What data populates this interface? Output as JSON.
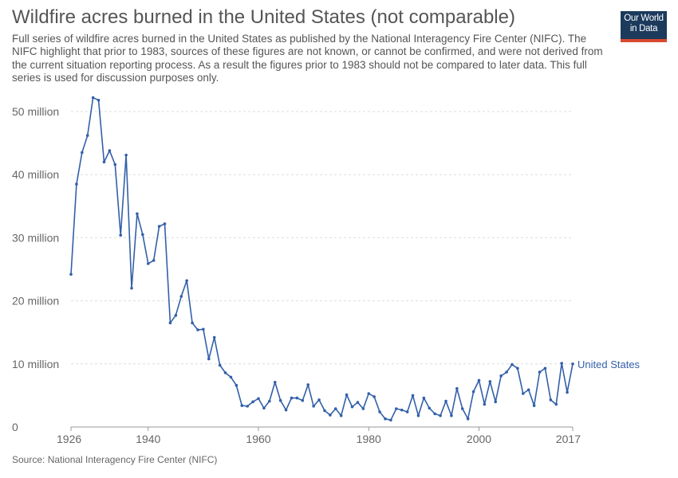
{
  "title": "Wildfire acres burned in the United States (not comparable)",
  "subtitle": "Full series of wildfire acres burned in the United States as published by the National Interagency Fire Center (NIFC). The NIFC highlight that prior to 1983, sources of these figures are not known, or cannot be confirmed, and were not derived from the current situation reporting process. As a result the figures prior to 1983 should not be compared to later data. This full series is used for discussion purposes only.",
  "logo": {
    "line1": "Our World",
    "line2": "in Data",
    "bg": "#1b3a5c",
    "accent": "#d9492f"
  },
  "source": "Source: National Interagency Fire Center (NIFC)",
  "chart_data": {
    "type": "line",
    "title": "Wildfire acres burned in the United States (not comparable)",
    "xlabel": "",
    "ylabel": "",
    "xlim": [
      1926,
      2017
    ],
    "ylim": [
      0,
      50000000
    ],
    "x_ticks": [
      1926,
      1940,
      1960,
      1980,
      2000,
      2017
    ],
    "x_tick_labels": [
      "1926",
      "1940",
      "1960",
      "1980",
      "2000",
      "2017"
    ],
    "y_ticks": [
      0,
      10000000,
      20000000,
      30000000,
      40000000,
      50000000
    ],
    "y_tick_labels": [
      "0",
      "10 million",
      "20 million",
      "30 million",
      "40 million",
      "50 million"
    ],
    "grid": "horizontal-dashed",
    "series": [
      {
        "name": "United States",
        "color": "#3360a9",
        "x": [
          1926,
          1927,
          1928,
          1929,
          1930,
          1931,
          1932,
          1933,
          1934,
          1935,
          1936,
          1937,
          1938,
          1939,
          1940,
          1941,
          1942,
          1943,
          1944,
          1945,
          1946,
          1947,
          1948,
          1949,
          1950,
          1951,
          1952,
          1953,
          1954,
          1955,
          1956,
          1957,
          1958,
          1959,
          1960,
          1961,
          1962,
          1963,
          1964,
          1965,
          1966,
          1967,
          1968,
          1969,
          1970,
          1971,
          1972,
          1973,
          1974,
          1975,
          1976,
          1977,
          1978,
          1979,
          1980,
          1981,
          1982,
          1983,
          1984,
          1985,
          1986,
          1987,
          1988,
          1989,
          1990,
          1991,
          1992,
          1993,
          1994,
          1995,
          1996,
          1997,
          1998,
          1999,
          2000,
          2001,
          2002,
          2003,
          2004,
          2005,
          2006,
          2007,
          2008,
          2009,
          2010,
          2011,
          2012,
          2013,
          2014,
          2015,
          2016,
          2017
        ],
        "y": [
          24200000,
          38500000,
          43500000,
          46200000,
          52200000,
          51800000,
          42000000,
          43800000,
          41600000,
          30400000,
          43100000,
          22000000,
          33800000,
          30500000,
          25900000,
          26400000,
          31800000,
          32200000,
          16500000,
          17700000,
          20700000,
          23200000,
          16500000,
          15400000,
          15500000,
          10800000,
          14200000,
          9800000,
          8600000,
          7900000,
          6600000,
          3400000,
          3300000,
          4000000,
          4500000,
          3000000,
          4100000,
          7100000,
          4200000,
          2700000,
          4600000,
          4600000,
          4200000,
          6700000,
          3300000,
          4300000,
          2600000,
          1900000,
          2900000,
          1800000,
          5100000,
          3200000,
          3900000,
          2900000,
          5300000,
          4800000,
          2400000,
          1300000,
          1100000,
          2900000,
          2700000,
          2400000,
          5000000,
          1800000,
          4600000,
          3000000,
          2100000,
          1800000,
          4100000,
          1800000,
          6100000,
          2900000,
          1300000,
          5600000,
          7400000,
          3600000,
          7200000,
          4000000,
          8100000,
          8700000,
          9900000,
          9300000,
          5300000,
          5900000,
          3400000,
          8700000,
          9300000,
          4300000,
          3600000,
          10100000,
          5500000,
          10000000
        ]
      }
    ]
  }
}
